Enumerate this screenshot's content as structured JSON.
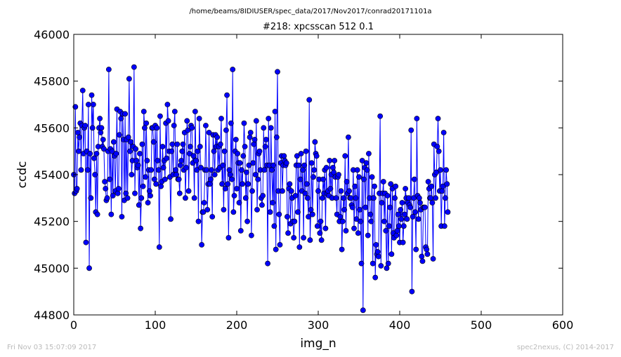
{
  "suptitle": "/home/beams/8IDIUSER/spec_data/2017/Nov2017/conrad20171101a",
  "footer_left": "Fri Nov 03 15:07:09 2017",
  "footer_right": "spec2nexus, (C) 2014-2017",
  "chart_data": {
    "type": "line",
    "title": "#218: xpcsscan 512 0.1",
    "xlabel": "img_n",
    "ylabel": "ccdc",
    "xlim": [
      0,
      600
    ],
    "ylim": [
      44800,
      46000
    ],
    "xticks": [
      0,
      100,
      200,
      300,
      400,
      500,
      600
    ],
    "yticks": [
      44800,
      45000,
      45200,
      45400,
      45600,
      45800,
      46000
    ],
    "grid": false,
    "marker": "circle",
    "series": [
      {
        "name": "",
        "color": "#0000ff",
        "x_start": 0,
        "x_step": 1,
        "y": [
          45400,
          45320,
          45690,
          45330,
          45340,
          45580,
          45500,
          45560,
          45620,
          45420,
          45610,
          45760,
          45490,
          45600,
          45610,
          45110,
          45500,
          45420,
          45700,
          45000,
          45490,
          45300,
          45740,
          45600,
          45700,
          45470,
          45400,
          45240,
          45490,
          45230,
          45520,
          45600,
          45640,
          45580,
          45600,
          45520,
          45550,
          45510,
          45370,
          45340,
          45290,
          45300,
          45500,
          45850,
          45380,
          45510,
          45230,
          45500,
          45310,
          45540,
          45480,
          45330,
          45490,
          45680,
          45320,
          45340,
          45570,
          45670,
          45640,
          45220,
          45660,
          45550,
          45290,
          45660,
          45320,
          45550,
          45300,
          45560,
          45810,
          45500,
          45540,
          45400,
          45460,
          45520,
          45860,
          45320,
          45510,
          45460,
          45430,
          45440,
          45270,
          45490,
          45170,
          45300,
          45530,
          45350,
          45670,
          45600,
          45390,
          45620,
          45460,
          45280,
          45420,
          45330,
          45310,
          45420,
          45600,
          45600,
          45540,
          45380,
          45610,
          45360,
          45600,
          45460,
          45420,
          45090,
          45650,
          45350,
          45370,
          45520,
          45430,
          45460,
          45380,
          45620,
          45470,
          45700,
          45630,
          45500,
          45390,
          45210,
          45500,
          45530,
          45400,
          45610,
          45670,
          45420,
          45400,
          45530,
          45380,
          45380,
          45320,
          45440,
          45460,
          45500,
          45530,
          45420,
          45580,
          45300,
          45430,
          45630,
          45590,
          45330,
          45490,
          45520,
          45610,
          45600,
          45450,
          45480,
          45300,
          45670,
          45460,
          45420,
          45500,
          45200,
          45640,
          45520,
          45430,
          45100,
          45240,
          45240,
          45280,
          45420,
          45610,
          45420,
          45250,
          45360,
          45580,
          45360,
          45380,
          45420,
          45220,
          45570,
          45500,
          45400,
          45570,
          45520,
          45560,
          45420,
          45520,
          45430,
          45530,
          45640,
          45360,
          45440,
          45250,
          45500,
          45340,
          45590,
          45740,
          45360,
          45130,
          45420,
          45400,
          45620,
          45380,
          45850,
          45240,
          45310,
          45500,
          45550,
          45340,
          45490,
          45450,
          45280,
          45450,
          45160,
          45420,
          45360,
          45480,
          45620,
          45520,
          45300,
          45410,
          45200,
          45360,
          45440,
          45560,
          45580,
          45140,
          45330,
          45450,
          45530,
          45550,
          45400,
          45630,
          45250,
          45380,
          45490,
          45500,
          45420,
          45300,
          45270,
          45310,
          45600,
          45420,
          45520,
          45550,
          45440,
          45020,
          45640,
          45440,
          45240,
          45600,
          45420,
          45280,
          45440,
          45180,
          45670,
          45080,
          45560,
          45840,
          45330,
          45230,
          45100,
          45450,
          45480,
          45330,
          45440,
          45480,
          45460,
          45440,
          45450,
          45220,
          45150,
          45340,
          45360,
          45190,
          45330,
          45300,
          45200,
          45130,
          45200,
          45310,
          45440,
          45480,
          45240,
          45440,
          45090,
          45380,
          45490,
          45330,
          45420,
          45130,
          45440,
          45320,
          45500,
          45360,
          45300,
          45220,
          45720,
          45120,
          45250,
          45450,
          45230,
          45390,
          45420,
          45540,
          45490,
          45480,
          45180,
          45330,
          45380,
          45150,
          45200,
          45120,
          45300,
          45380,
          45320,
          45420,
          45170,
          45430,
          45320,
          45330,
          45310,
          45460,
          45340,
          45400,
          45300,
          45430,
          45410,
          45460,
          45390,
          45300,
          45230,
          45390,
          45400,
          45200,
          45220,
          45330,
          45080,
          45200,
          45300,
          45250,
          45480,
          45160,
          45370,
          45320,
          45560,
          45330,
          45300,
          45300,
          45270,
          45260,
          45420,
          45170,
          45350,
          45300,
          45210,
          45420,
          45150,
          45390,
          45250,
          45200,
          45020,
          45460,
          44820,
          45380,
          45430,
          45260,
          45450,
          45420,
          45140,
          45490,
          45300,
          45230,
          45200,
          45390,
          45020,
          45300,
          45350,
          44960,
          45100,
          45060,
          45070,
          45050,
          45320,
          45650,
          45010,
          45280,
          45320,
          45370,
          45200,
          45320,
          45160,
          45000,
          45310,
          45020,
          45180,
          45260,
          45360,
          45060,
          45340,
          45150,
          45130,
          45300,
          45350,
          45140,
          45160,
          45230,
          45180,
          45110,
          45250,
          45210,
          45280,
          45110,
          45180,
          45230,
          45340,
          45300,
          45210,
          45280,
          45300,
          45270,
          45260,
          45590,
          44900,
          45220,
          45300,
          45380,
          45240,
          45080,
          45640,
          45310,
          45210,
          45300,
          45280,
          45250,
          45050,
          45030,
          45260,
          45260,
          45260,
          45090,
          45080,
          45060,
          45370,
          45340,
          45300,
          45300,
          45350,
          45280,
          45040,
          45530,
          45400,
          45300,
          45410,
          45520,
          45640,
          45500,
          45330,
          45420,
          45180,
          45330,
          45350,
          45580,
          45180,
          45300,
          45420,
          45360,
          45240
        ]
      }
    ]
  }
}
